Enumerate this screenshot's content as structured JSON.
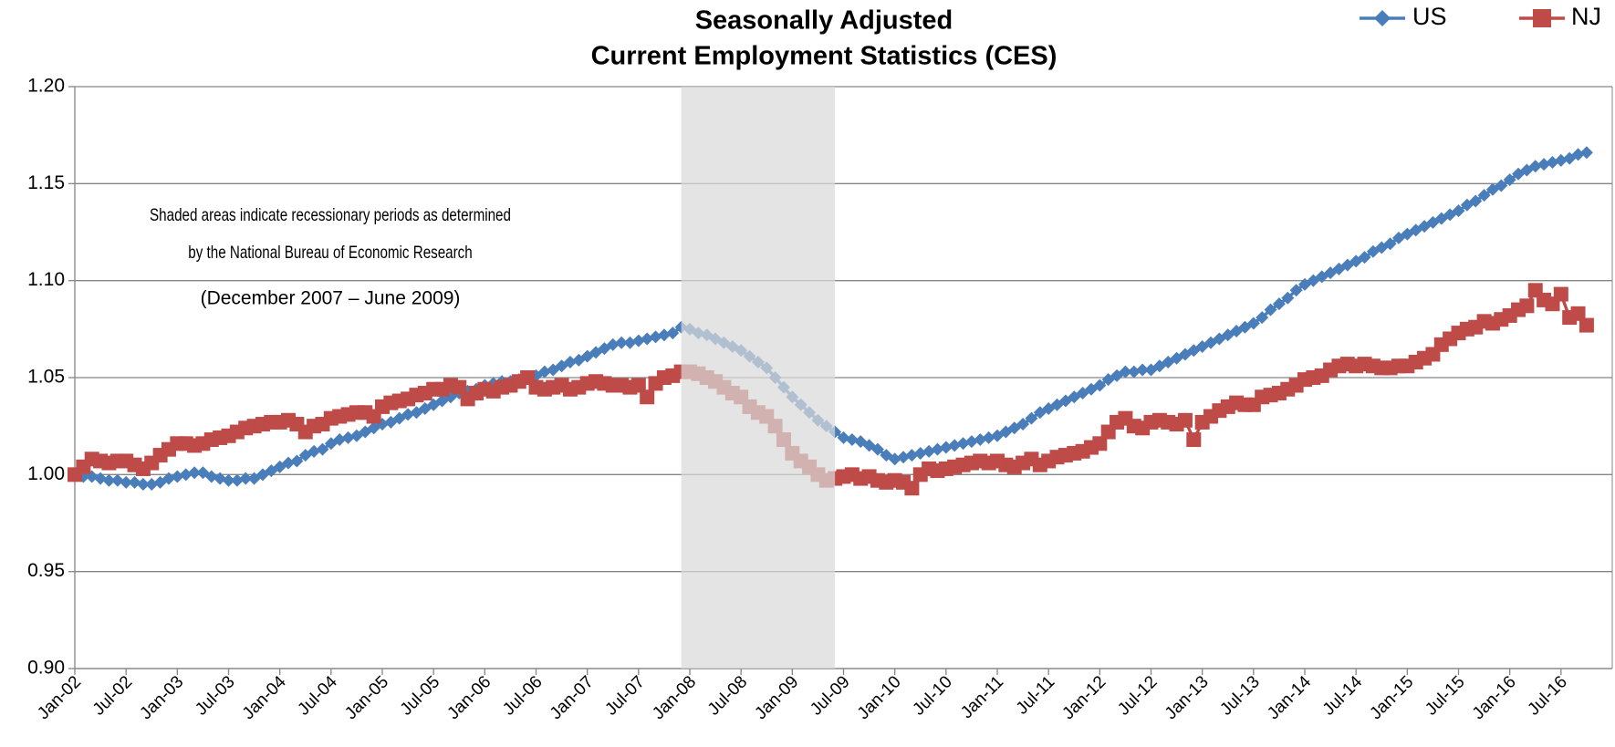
{
  "chart_data": {
    "type": "line",
    "title_lines": [
      "Seasonally Adjusted",
      "Current Employment Statistics (CES)"
    ],
    "annotation_lines": [
      "Shaded areas indicate recessionary periods as determined",
      "by the National Bureau of Economic Research",
      "(December 2007 – June 2009)"
    ],
    "categories": [
      "Jan-02",
      null,
      null,
      null,
      null,
      null,
      "Jul-02",
      null,
      null,
      null,
      null,
      null,
      "Jan-03",
      null,
      null,
      null,
      null,
      null,
      "Jul-03",
      null,
      null,
      null,
      null,
      null,
      "Jan-04",
      null,
      null,
      null,
      null,
      null,
      "Jul-04",
      null,
      null,
      null,
      null,
      null,
      "Jan-05",
      null,
      null,
      null,
      null,
      null,
      "Jul-05",
      null,
      null,
      null,
      null,
      null,
      "Jan-06",
      null,
      null,
      null,
      null,
      null,
      "Jul-06",
      null,
      null,
      null,
      null,
      null,
      "Jan-07",
      null,
      null,
      null,
      null,
      null,
      "Jul-07",
      null,
      null,
      null,
      null,
      null,
      "Jan-08",
      null,
      null,
      null,
      null,
      null,
      "Jul-08",
      null,
      null,
      null,
      null,
      null,
      "Jan-09",
      null,
      null,
      null,
      null,
      null,
      "Jul-09",
      null,
      null,
      null,
      null,
      null,
      "Jan-10",
      null,
      null,
      null,
      null,
      null,
      "Jul-10",
      null,
      null,
      null,
      null,
      null,
      "Jan-11",
      null,
      null,
      null,
      null,
      null,
      "Jul-11",
      null,
      null,
      null,
      null,
      null,
      "Jan-12",
      null,
      null,
      null,
      null,
      null,
      "Jul-12",
      null,
      null,
      null,
      null,
      null,
      "Jan-13",
      null,
      null,
      null,
      null,
      null,
      "Jul-13",
      null,
      null,
      null,
      null,
      null,
      "Jan-14",
      null,
      null,
      null,
      null,
      null,
      "Jul-14",
      null,
      null,
      null,
      null,
      null,
      "Jan-15",
      null,
      null,
      null,
      null,
      null,
      "Jul-15",
      null,
      null,
      null,
      null,
      null,
      "Jan-16",
      null,
      null,
      null,
      null,
      null,
      "Jul-16",
      null,
      null,
      null
    ],
    "series": [
      {
        "name": "US",
        "color": "#4a7ebb",
        "marker": "diamond",
        "values": [
          1.0,
          0.999,
          0.999,
          0.998,
          0.997,
          0.997,
          0.996,
          0.996,
          0.995,
          0.995,
          0.996,
          0.998,
          0.999,
          1.0,
          1.001,
          1.001,
          0.999,
          0.998,
          0.997,
          0.997,
          0.998,
          0.998,
          1.0,
          1.002,
          1.004,
          1.006,
          1.007,
          1.01,
          1.012,
          1.013,
          1.016,
          1.018,
          1.019,
          1.02,
          1.022,
          1.024,
          1.026,
          1.027,
          1.029,
          1.031,
          1.032,
          1.034,
          1.036,
          1.038,
          1.04,
          1.042,
          1.043,
          1.044,
          1.046,
          1.047,
          1.048,
          1.048,
          1.049,
          1.05,
          1.051,
          1.053,
          1.054,
          1.056,
          1.058,
          1.059,
          1.061,
          1.063,
          1.065,
          1.067,
          1.068,
          1.068,
          1.069,
          1.07,
          1.071,
          1.072,
          1.073,
          1.076,
          1.075,
          1.073,
          1.072,
          1.07,
          1.068,
          1.066,
          1.064,
          1.061,
          1.058,
          1.055,
          1.05,
          1.045,
          1.04,
          1.036,
          1.032,
          1.028,
          1.025,
          1.022,
          1.019,
          1.018,
          1.017,
          1.015,
          1.013,
          1.01,
          1.008,
          1.009,
          1.01,
          1.011,
          1.012,
          1.013,
          1.014,
          1.015,
          1.016,
          1.017,
          1.018,
          1.019,
          1.02,
          1.022,
          1.024,
          1.026,
          1.029,
          1.032,
          1.034,
          1.036,
          1.038,
          1.04,
          1.042,
          1.044,
          1.046,
          1.049,
          1.051,
          1.053,
          1.053,
          1.054,
          1.054,
          1.056,
          1.058,
          1.06,
          1.062,
          1.064,
          1.066,
          1.068,
          1.07,
          1.072,
          1.074,
          1.076,
          1.078,
          1.081,
          1.085,
          1.088,
          1.091,
          1.095,
          1.098,
          1.1,
          1.102,
          1.104,
          1.106,
          1.108,
          1.11,
          1.112,
          1.115,
          1.117,
          1.119,
          1.122,
          1.124,
          1.126,
          1.128,
          1.13,
          1.132,
          1.134,
          1.136,
          1.139,
          1.141,
          1.144,
          1.147,
          1.149,
          1.152,
          1.155,
          1.157,
          1.159,
          1.16,
          1.161,
          1.162,
          1.163,
          1.165,
          1.166
        ]
      },
      {
        "name": "NJ",
        "color": "#be4b48",
        "marker": "square",
        "values": [
          1.0,
          1.004,
          1.008,
          1.007,
          1.006,
          1.007,
          1.007,
          1.005,
          1.003,
          1.006,
          1.01,
          1.013,
          1.016,
          1.016,
          1.015,
          1.016,
          1.018,
          1.019,
          1.02,
          1.022,
          1.024,
          1.025,
          1.026,
          1.027,
          1.027,
          1.028,
          1.026,
          1.022,
          1.025,
          1.026,
          1.029,
          1.03,
          1.031,
          1.032,
          1.032,
          1.03,
          1.035,
          1.037,
          1.038,
          1.039,
          1.041,
          1.042,
          1.044,
          1.044,
          1.046,
          1.045,
          1.039,
          1.042,
          1.044,
          1.043,
          1.045,
          1.046,
          1.048,
          1.05,
          1.045,
          1.044,
          1.045,
          1.046,
          1.044,
          1.045,
          1.047,
          1.048,
          1.047,
          1.046,
          1.046,
          1.045,
          1.046,
          1.04,
          1.047,
          1.05,
          1.051,
          1.053,
          1.053,
          1.052,
          1.05,
          1.048,
          1.045,
          1.042,
          1.04,
          1.035,
          1.032,
          1.03,
          1.025,
          1.018,
          1.011,
          1.007,
          1.004,
          1.0,
          0.997,
          0.998,
          0.999,
          1.0,
          0.998,
          0.999,
          0.997,
          0.996,
          0.997,
          0.996,
          0.993,
          1.0,
          1.003,
          1.002,
          1.003,
          1.004,
          1.005,
          1.006,
          1.007,
          1.006,
          1.007,
          1.005,
          1.004,
          1.006,
          1.008,
          1.005,
          1.007,
          1.009,
          1.01,
          1.011,
          1.012,
          1.014,
          1.016,
          1.022,
          1.027,
          1.029,
          1.025,
          1.024,
          1.027,
          1.028,
          1.027,
          1.026,
          1.028,
          1.018,
          1.027,
          1.03,
          1.033,
          1.035,
          1.037,
          1.036,
          1.036,
          1.04,
          1.041,
          1.042,
          1.044,
          1.046,
          1.049,
          1.05,
          1.051,
          1.054,
          1.056,
          1.057,
          1.056,
          1.057,
          1.056,
          1.055,
          1.055,
          1.056,
          1.056,
          1.058,
          1.06,
          1.062,
          1.067,
          1.07,
          1.073,
          1.075,
          1.076,
          1.079,
          1.078,
          1.08,
          1.082,
          1.085,
          1.087,
          1.095,
          1.09,
          1.088,
          1.093,
          1.081,
          1.083,
          1.077
        ]
      }
    ],
    "shaded_range": [
      71,
      89
    ],
    "ylim": [
      0.9,
      1.2
    ],
    "yticks": [
      {
        "value": 0.9,
        "label": "0.90"
      },
      {
        "value": 0.95,
        "label": "0.95"
      },
      {
        "value": 1.0,
        "label": "1.00"
      },
      {
        "value": 1.05,
        "label": "1.05"
      },
      {
        "value": 1.1,
        "label": "1.10"
      },
      {
        "value": 1.15,
        "label": "1.15"
      },
      {
        "value": 1.2,
        "label": "1.20"
      }
    ],
    "grid": true
  }
}
